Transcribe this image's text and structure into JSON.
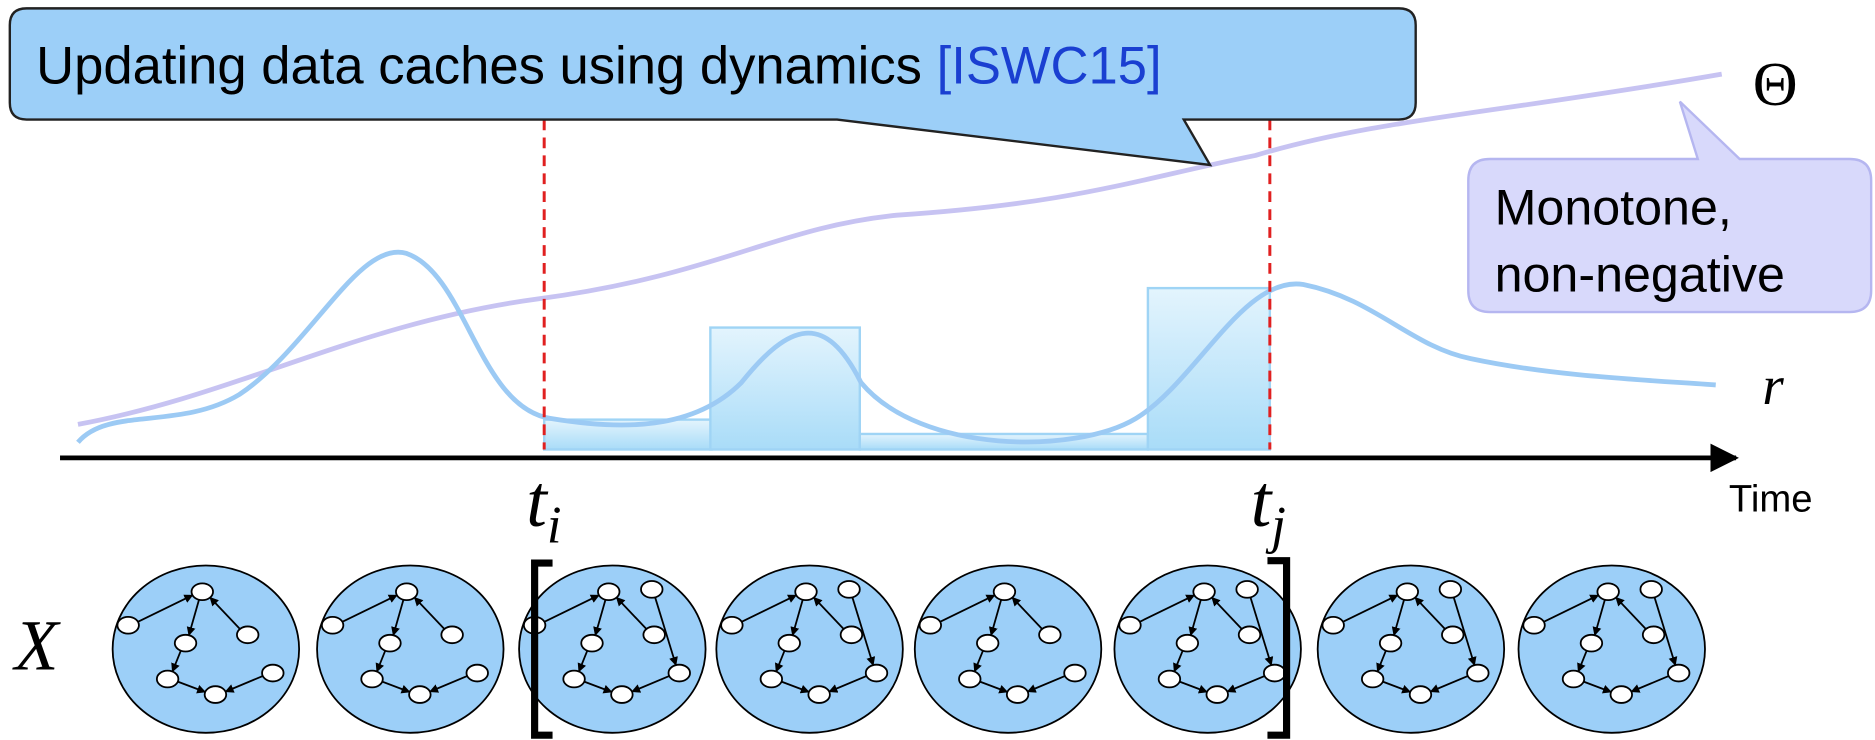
{
  "header": {
    "title": "Updating data caches using dynamics",
    "citation": "[ISWC15]"
  },
  "callout": {
    "line1": "Monotone,",
    "line2": "non-negative"
  },
  "labels": {
    "theta": "Θ",
    "r": "r",
    "ti_base": "t",
    "ti_sub": "i",
    "tj_base": "t",
    "tj_sub": "j",
    "time": "Time",
    "x": "X"
  }
}
